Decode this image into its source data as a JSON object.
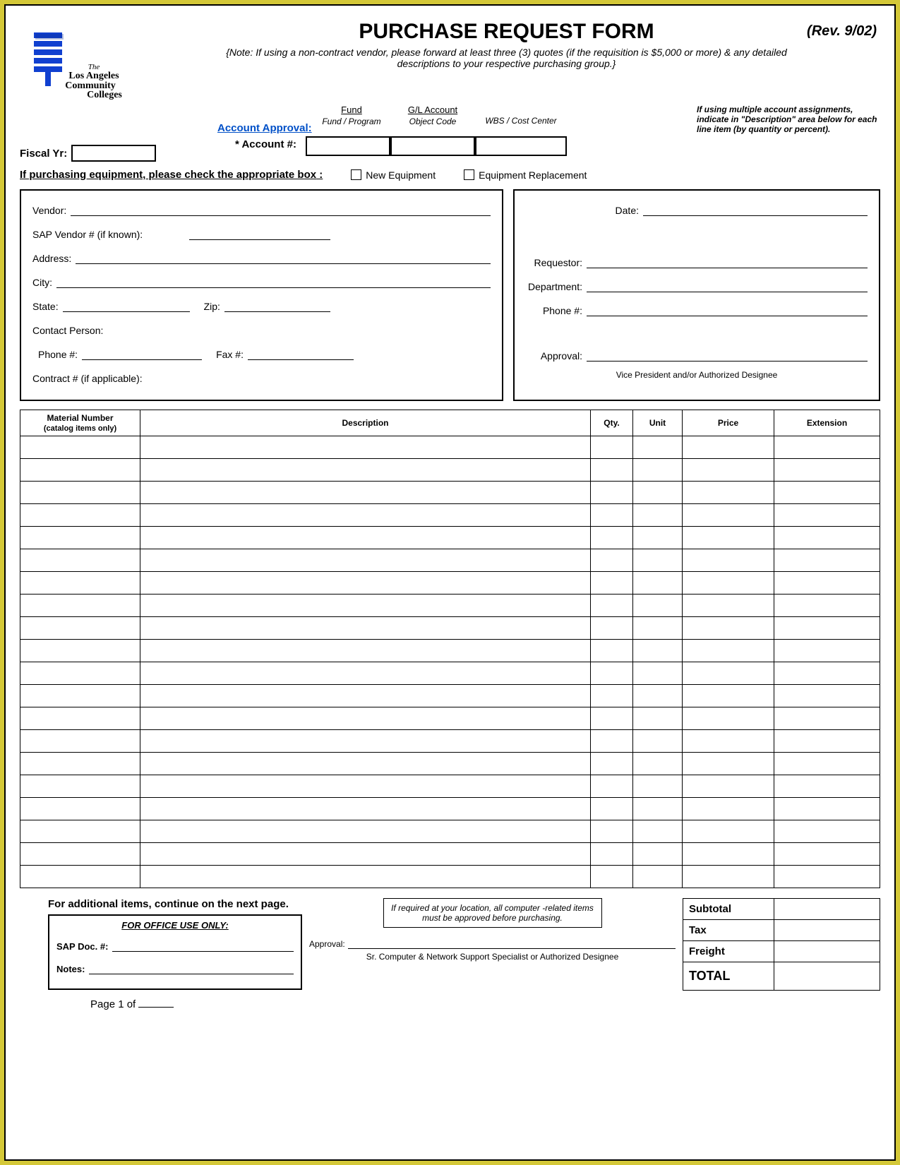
{
  "header": {
    "title": "PURCHASE REQUEST FORM",
    "revision": "(Rev. 9/02)",
    "note": "{Note: If using a non-contract vendor, please forward at least three (3) quotes (if the requisition is $5,000 or more) & any detailed descriptions to your respective purchasing group.}",
    "logo": {
      "org_line1": "The",
      "org_line2": "Los Angeles",
      "org_line3": "Community",
      "org_line4": "Colleges"
    }
  },
  "account": {
    "col1_head": "Fund",
    "col1_sub": "Fund / Program",
    "col2_head": "G/L Account",
    "col2_sub": "Object Code",
    "col3_sub": "WBS / Cost Center",
    "approval_label": "Account Approval:",
    "account_num_label": "* Account #:",
    "fiscal_label": "Fiscal Yr:",
    "side_note": "If using multiple account assignments, indicate in \"Description\" area below for each line item (by quantity or percent)."
  },
  "equipment": {
    "lead": "If purchasing equipment, please check the appropriate box",
    "opt1": "New Equipment",
    "opt2": "Equipment Replacement"
  },
  "vendor": {
    "vendor": "Vendor:",
    "sap": "SAP Vendor # (if known):",
    "address": "Address:",
    "city": "City:",
    "state": "State:",
    "zip": "Zip:",
    "contact": "Contact Person:",
    "phone": "Phone #:",
    "fax": "Fax #:",
    "contract": "Contract # (if applicable):"
  },
  "requestor": {
    "date": "Date:",
    "requestor": "Requestor:",
    "department": "Department:",
    "phone": "Phone #:",
    "approval": "Approval:",
    "caption": "Vice President and/or Authorized Designee"
  },
  "items": {
    "headers": {
      "material": "Material Number",
      "material_sub": "(catalog items only)",
      "description": "Description",
      "qty": "Qty.",
      "unit": "Unit",
      "price": "Price",
      "extension": "Extension"
    },
    "row_count": 20
  },
  "footer": {
    "continue": "For additional items, continue on the next page.",
    "office_title": "FOR OFFICE USE ONLY:",
    "sap_doc": "SAP Doc. #:",
    "notes": "Notes:",
    "page": "Page 1 of",
    "req_box": "If required at your  location, all computer -related items must be approved  before purchasing.",
    "approval": "Approval:",
    "approval_caption": "Sr. Computer & Network Support Specialist or Authorized Designee",
    "totals": {
      "subtotal": "Subtotal",
      "tax": "Tax",
      "freight": "Freight",
      "total": "TOTAL"
    }
  },
  "style": {
    "border_color": "#d4c838",
    "link_color": "#0050c8",
    "logo_blue": "#1040d0",
    "logo_darkblue": "#0a2a90"
  }
}
